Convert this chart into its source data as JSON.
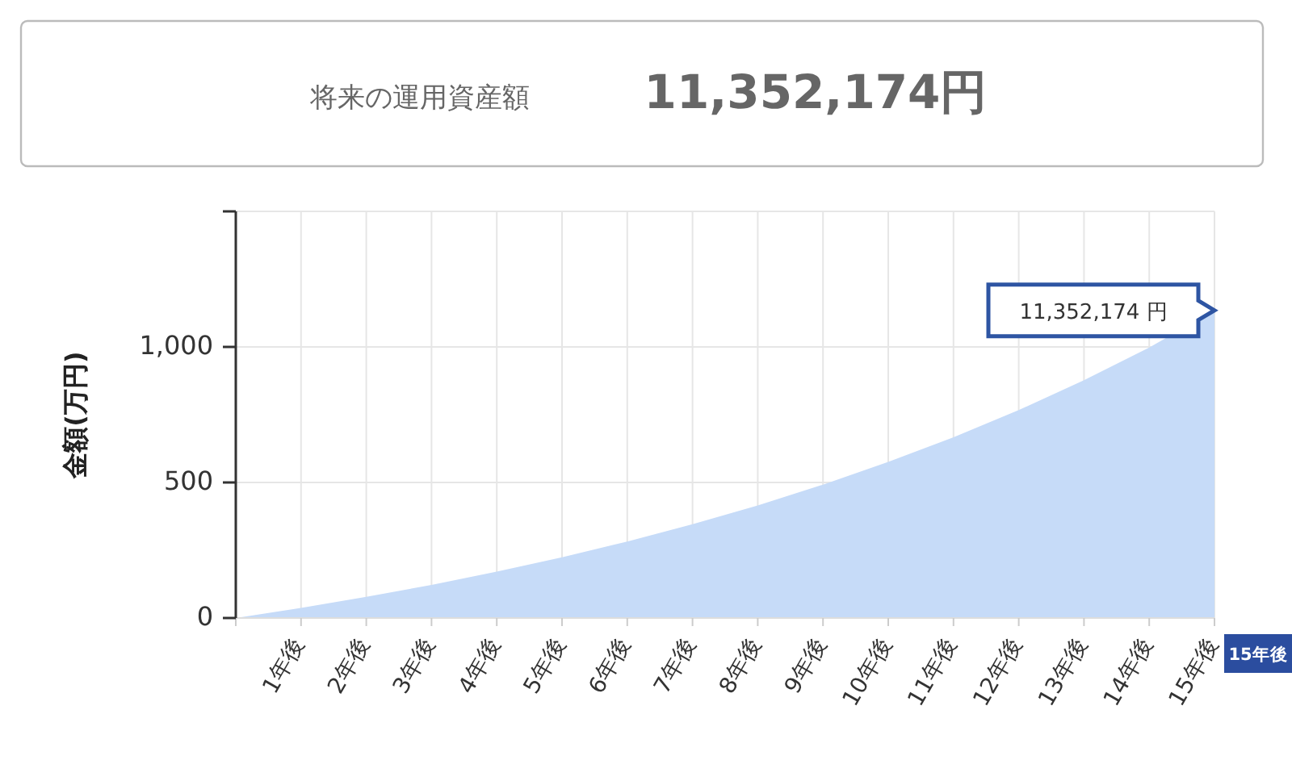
{
  "chart_data": {
    "type": "area",
    "title": "将来の運用資産額",
    "subtitle": "11,352,174円",
    "ylabel": "金額(万円)",
    "categories": [
      null,
      "1年後",
      "2年後",
      "3年後",
      "4年後",
      "5年後",
      "6年後",
      "7年後",
      "8年後",
      "9年後",
      "10年後",
      "11年後",
      "12年後",
      "13年後",
      "14年後",
      "15年後"
    ],
    "values": [
      0,
      37,
      78,
      122,
      171,
      224,
      282,
      346,
      415,
      492,
      576,
      667,
      767,
      877,
      998,
      1135
    ],
    "color": "#c6dbf8",
    "ylim": [
      0,
      1500
    ],
    "yticks": [
      0,
      {
        "value": 500,
        "label": "500"
      },
      {
        "value": 1000,
        "label": "1,000"
      },
      {
        "value": 1500,
        "label": null
      }
    ],
    "grid": true,
    "annotations": [
      {
        "text": "11,352,174 円",
        "x": "15年後",
        "y": 1135
      },
      "15年後"
    ]
  }
}
